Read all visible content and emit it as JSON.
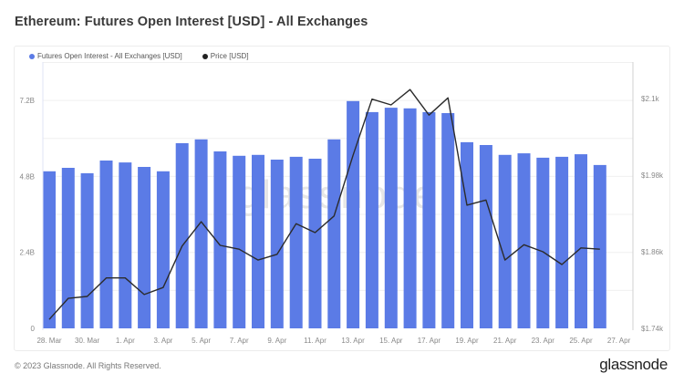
{
  "header": {
    "title": "Ethereum: Futures Open Interest [USD] - All Exchanges"
  },
  "legend": {
    "series_1": "Futures Open Interest - All Exchanges [USD]",
    "series_2": "Price [USD]"
  },
  "colors": {
    "bars": "#5B7BE6",
    "price_line": "#2b2b2b",
    "legend_oi": "#5B7BE6",
    "legend_price": "#222222"
  },
  "watermark": "glassnode",
  "footer": {
    "copyright": "© 2023 Glassnode. All Rights Reserved.",
    "brand": "glassnode"
  },
  "chart_data": {
    "type": "bar",
    "title": "Ethereum: Futures Open Interest [USD] - All Exchanges",
    "xlabel": "",
    "ylabel": "",
    "categories": [
      "28. Mar",
      "29. Mar",
      "30. Mar",
      "31. Mar",
      "1. Apr",
      "2. Apr",
      "3. Apr",
      "4. Apr",
      "5. Apr",
      "6. Apr",
      "7. Apr",
      "8. Apr",
      "9. Apr",
      "10. Apr",
      "11. Apr",
      "12. Apr",
      "13. Apr",
      "14. Apr",
      "15. Apr",
      "16. Apr",
      "17. Apr",
      "18. Apr",
      "19. Apr",
      "20. Apr",
      "21. Apr",
      "22. Apr",
      "23. Apr",
      "24. Apr",
      "25. Apr",
      "26. Apr"
    ],
    "x_tick_labels": [
      "28. Mar",
      "30. Mar",
      "1. Apr",
      "3. Apr",
      "5. Apr",
      "7. Apr",
      "9. Apr",
      "11. Apr",
      "13. Apr",
      "15. Apr",
      "17. Apr",
      "19. Apr",
      "21. Apr",
      "23. Apr",
      "25. Apr",
      "27. Apr"
    ],
    "series": [
      {
        "name": "Futures Open Interest - All Exchanges [USD]",
        "type": "bar",
        "axis": "left",
        "unit": "USD billions",
        "values": [
          4.96,
          5.07,
          4.9,
          5.3,
          5.24,
          5.1,
          4.96,
          5.85,
          5.97,
          5.59,
          5.45,
          5.48,
          5.33,
          5.42,
          5.36,
          5.97,
          7.18,
          6.83,
          6.97,
          6.95,
          6.83,
          6.8,
          5.88,
          5.79,
          5.48,
          5.53,
          5.39,
          5.42,
          5.5,
          5.16
        ]
      },
      {
        "name": "Price [USD]",
        "type": "line",
        "axis": "right",
        "unit": "USD",
        "values": [
          1754,
          1787,
          1790,
          1819,
          1819,
          1793,
          1804,
          1869,
          1907,
          1870,
          1864,
          1847,
          1856,
          1904,
          1890,
          1916,
          2011,
          2099,
          2090,
          2114,
          2074,
          2101,
          1933,
          1941,
          1847,
          1871,
          1860,
          1840,
          1866,
          1864
        ]
      }
    ],
    "left_axis": {
      "ticks": [
        "0",
        "2.4B",
        "4.8B",
        "7.2B"
      ],
      "values": [
        0,
        2.4,
        4.8,
        7.2
      ],
      "range": [
        0,
        8.4
      ]
    },
    "right_axis": {
      "ticks": [
        "$1.74k",
        "$1.86k",
        "$1.98k",
        "$2.1k"
      ],
      "values": [
        1740,
        1860,
        1980,
        2100
      ],
      "range": [
        1740,
        2160
      ]
    },
    "grid": true,
    "legend_position": "top-left"
  }
}
